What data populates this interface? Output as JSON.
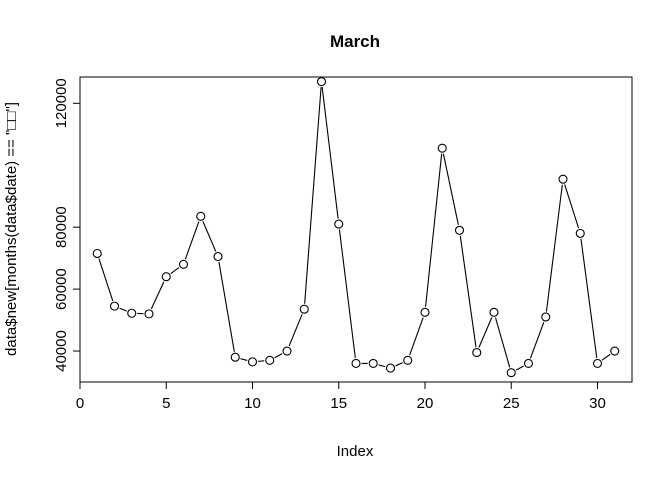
{
  "chart_data": {
    "type": "line",
    "title": "March",
    "xlabel": "Index",
    "ylabel": "data$new[months(data$date) == \"□□\"]",
    "x": [
      1,
      2,
      3,
      4,
      5,
      6,
      7,
      8,
      9,
      10,
      11,
      12,
      13,
      14,
      15,
      16,
      17,
      18,
      19,
      20,
      21,
      22,
      23,
      24,
      25,
      26,
      27,
      28,
      29,
      30,
      31
    ],
    "values": [
      71500,
      54500,
      52200,
      52000,
      64000,
      68000,
      83500,
      70500,
      38000,
      36500,
      37000,
      40000,
      53500,
      127000,
      81000,
      36000,
      36000,
      34500,
      37000,
      52500,
      105500,
      79000,
      39500,
      52500,
      33000,
      36000,
      51000,
      95500,
      78000,
      36000,
      40000
    ],
    "xlim": [
      0,
      32
    ],
    "ylim": [
      30000,
      128500
    ],
    "xticks": [
      "0",
      "5",
      "10",
      "15",
      "20",
      "25",
      "30"
    ],
    "yticks": [
      "40000",
      "60000",
      "80000",
      "120000"
    ],
    "marker": "open-circle",
    "line_style": "lines-with-gaps-at-points",
    "grid": false,
    "colors": {
      "line": "#000000",
      "marker_fill": "#ffffff",
      "axis": "#000000"
    }
  }
}
